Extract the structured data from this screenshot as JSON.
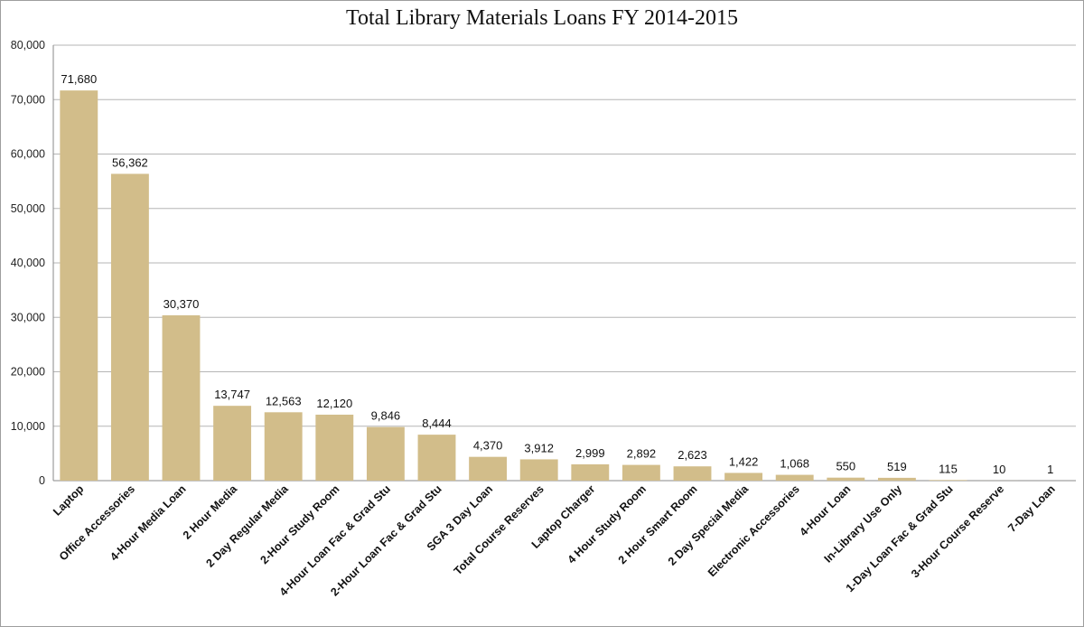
{
  "chart_data": {
    "type": "bar",
    "title": "Total Library Materials Loans FY 2014-2015",
    "xlabel": "",
    "ylabel": "",
    "ylim": [
      0,
      80000
    ],
    "yticks": [
      0,
      10000,
      20000,
      30000,
      40000,
      50000,
      60000,
      70000,
      80000
    ],
    "ytick_labels": [
      "0",
      "10,000",
      "20,000",
      "30,000",
      "40,000",
      "50,000",
      "60,000",
      "70,000",
      "80,000"
    ],
    "grid": true,
    "legend": "none",
    "bar_color": "#d2bd8a",
    "categories": [
      "Laptop",
      "Office Accessories",
      "4-Hour Media Loan",
      "2 Hour Media",
      "2 Day Regular Media",
      "2-Hour Study Room",
      "4-Hour Loan Fac & Grad Stu",
      "2-Hour Loan Fac & Grad Stu",
      "SGA 3 Day Loan",
      "Total Course Reserves",
      "Laptop Charger",
      "4 Hour Study Room",
      "2 Hour Smart Room",
      "2 Day Special Media",
      "Electronic Accessories",
      "4-Hour Loan",
      "In-Library Use Only",
      "1-Day Loan Fac & Grad Stu",
      "3-Hour Course Reserve",
      "7-Day Loan"
    ],
    "values": [
      71680,
      56362,
      30370,
      13747,
      12563,
      12120,
      9846,
      8444,
      4370,
      3912,
      2999,
      2892,
      2623,
      1422,
      1068,
      550,
      519,
      115,
      10,
      1
    ],
    "data_labels": [
      "71,680",
      "56,362",
      "30,370",
      "13,747",
      "12,563",
      "12,120",
      "9,846",
      "8,444",
      "4,370",
      "3,912",
      "2,999",
      "2,892",
      "2,623",
      "1,422",
      "1,068",
      "550",
      "519",
      "115",
      "10",
      "1"
    ]
  }
}
